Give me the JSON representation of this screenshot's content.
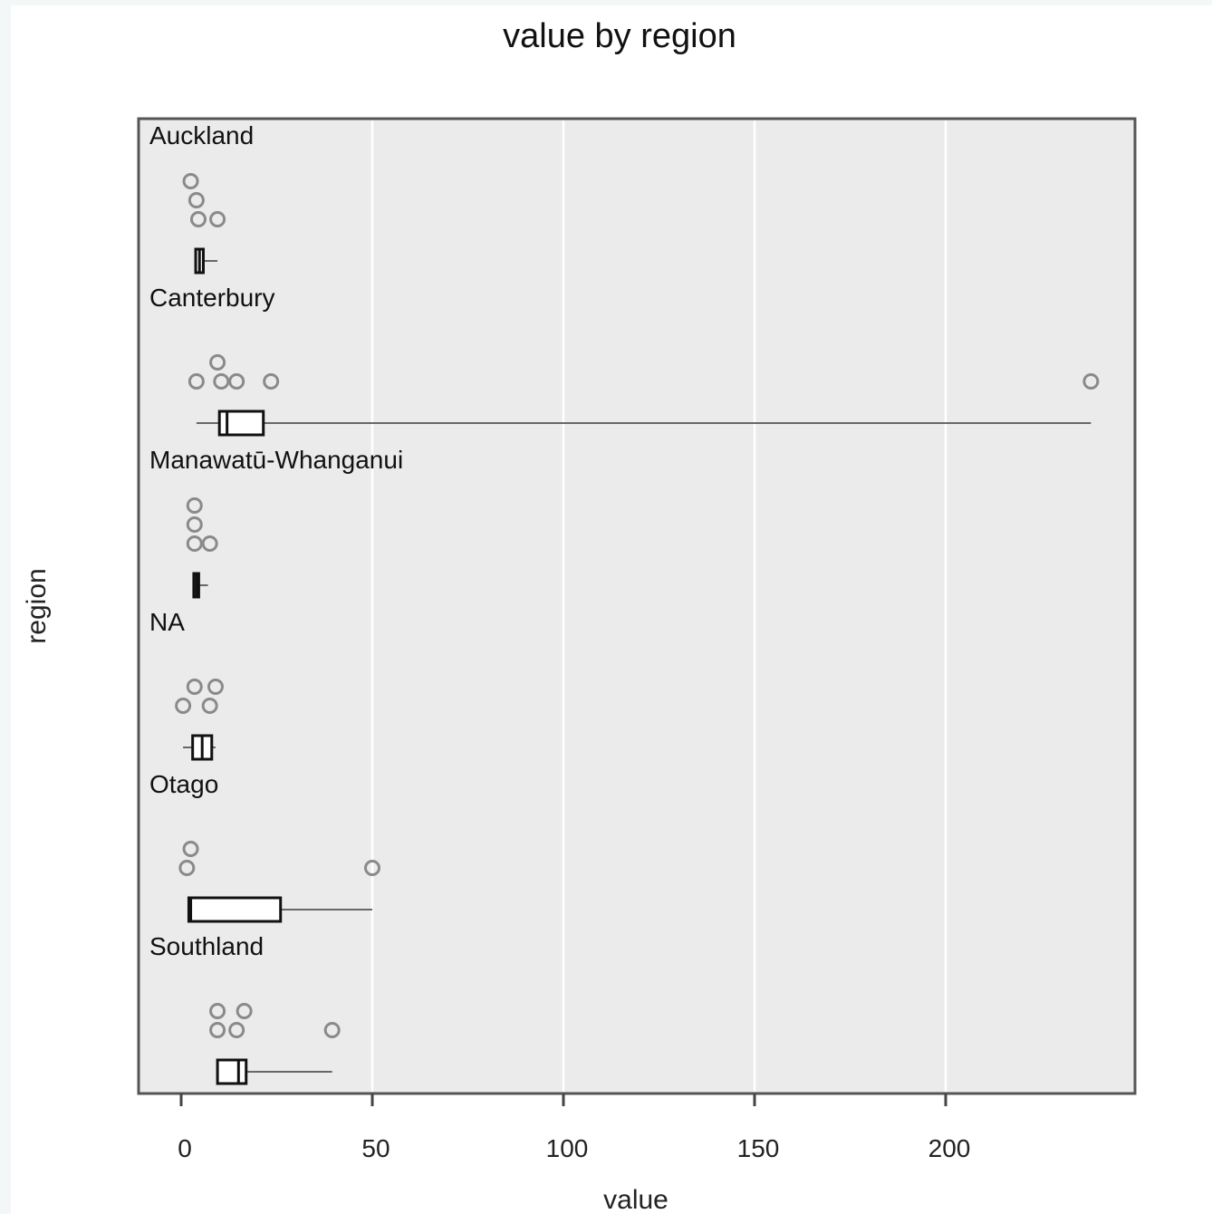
{
  "chart_data": {
    "type": "box",
    "title": "value by region",
    "xlabel": "value",
    "ylabel": "region",
    "xlim": [
      -12,
      250
    ],
    "xticks": [
      0,
      50,
      100,
      150,
      200
    ],
    "grid": true,
    "panel_background": "#ebebeb",
    "groups": [
      {
        "name": "Auckland",
        "box": {
          "whisker_low": 3.8,
          "q1": 3.8,
          "median": 4.8,
          "q3": 5.8,
          "whisker_high": 9.5
        },
        "points": [
          4.5,
          4.0,
          2.5,
          9.5
        ]
      },
      {
        "name": "Canterbury",
        "box": {
          "whisker_low": 4,
          "q1": 10,
          "median": 12,
          "q3": 21.5,
          "whisker_high": 238
        },
        "points": [
          10.5,
          4,
          9.5,
          14.5,
          23.5,
          238
        ]
      },
      {
        "name": "Manawatū-Whanganui",
        "box": {
          "whisker_low": 3.3,
          "q1": 3.3,
          "median": 4,
          "q3": 4.6,
          "whisker_high": 7
        },
        "points": [
          3.5,
          3.5,
          3.5,
          7.5
        ]
      },
      {
        "name": "NA",
        "box": {
          "whisker_low": 0.5,
          "q1": 3,
          "median": 5.5,
          "q3": 8,
          "whisker_high": 9
        },
        "points": [
          0.5,
          3.5,
          7.5,
          9
        ]
      },
      {
        "name": "Otago",
        "box": {
          "whisker_low": 2,
          "q1": 2,
          "median": 2.5,
          "q3": 26,
          "whisker_high": 50
        },
        "points": [
          1.5,
          2.5,
          50
        ]
      },
      {
        "name": "Southland",
        "box": {
          "whisker_low": 9.5,
          "q1": 9.5,
          "median": 15,
          "q3": 17,
          "whisker_high": 39.5
        },
        "points": [
          9.5,
          9.5,
          14.5,
          16.5,
          39.5
        ]
      }
    ]
  }
}
